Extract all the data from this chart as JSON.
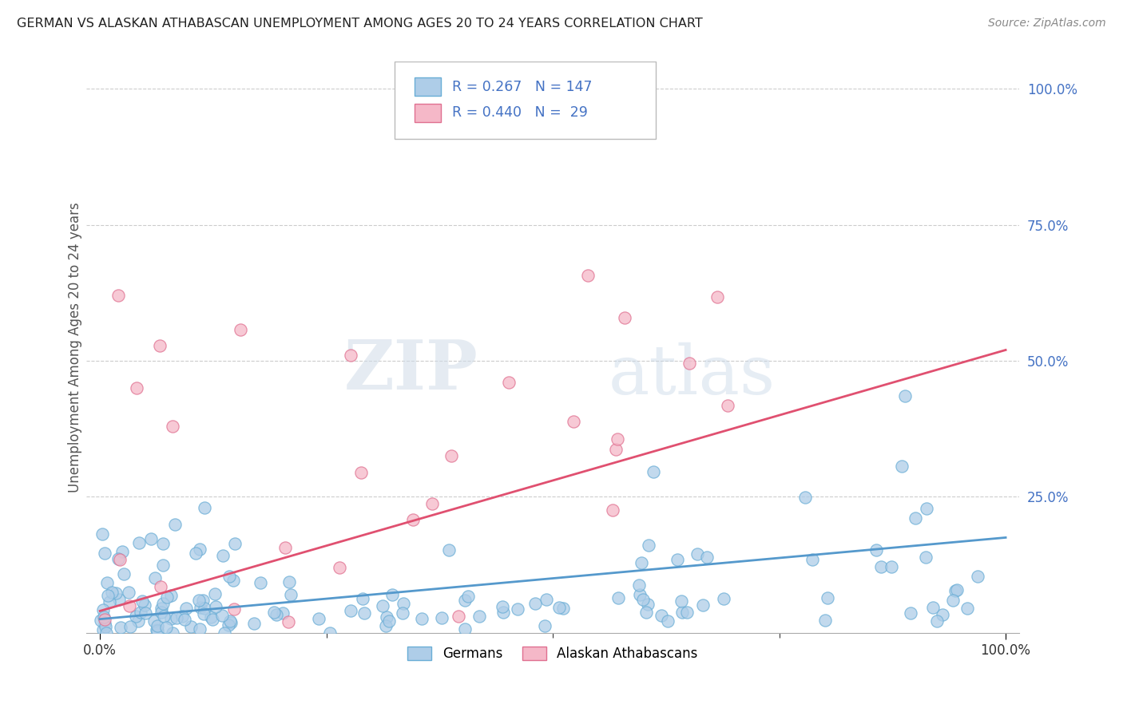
{
  "title": "GERMAN VS ALASKAN ATHABASCAN UNEMPLOYMENT AMONG AGES 20 TO 24 YEARS CORRELATION CHART",
  "source": "Source: ZipAtlas.com",
  "ylabel": "Unemployment Among Ages 20 to 24 years",
  "xlim": [
    0.0,
    1.0
  ],
  "ylim": [
    0.0,
    1.05
  ],
  "yticks": [
    0.0,
    0.25,
    0.5,
    0.75,
    1.0
  ],
  "xticks": [
    0.0,
    1.0
  ],
  "xtick_labels": [
    "0.0%",
    "100.0%"
  ],
  "german_R": 0.267,
  "german_N": 147,
  "athabascan_R": 0.44,
  "athabascan_N": 29,
  "german_color": "#aecde8",
  "athabascan_color": "#f5b8c8",
  "german_edge_color": "#6aaed6",
  "athabascan_edge_color": "#e07090",
  "german_line_color": "#5599cc",
  "athabascan_line_color": "#e05070",
  "legend_label_german": "Germans",
  "legend_label_athabascan": "Alaskan Athabascans",
  "watermark_zip": "ZIP",
  "watermark_atlas": "atlas",
  "background_color": "#ffffff",
  "grid_color": "#cccccc",
  "title_color": "#222222",
  "source_color": "#888888",
  "stat_color": "#4472c4",
  "axis_label_color": "#555555",
  "ytick_color": "#4472c4",
  "german_seed": 12,
  "athabascan_seed": 99
}
